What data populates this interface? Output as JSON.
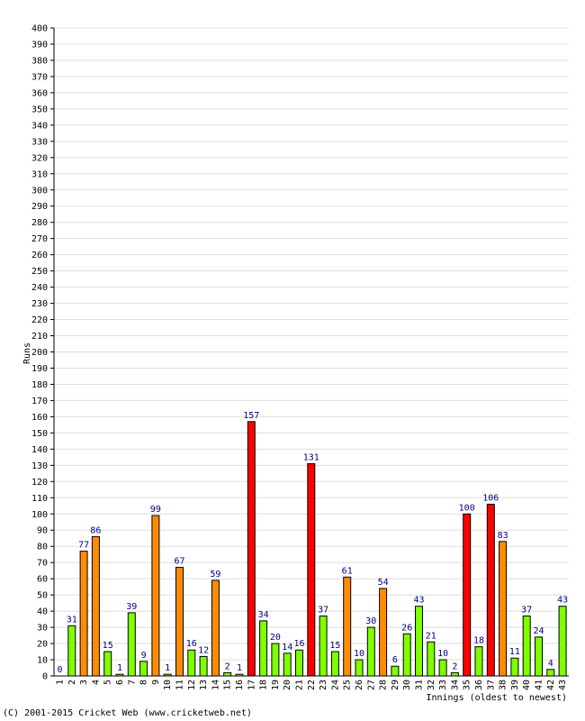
{
  "chart_data": {
    "type": "bar",
    "ylabel": "Runs",
    "xlabel": "Innings (oldest to newest)",
    "ylim": [
      0,
      400
    ],
    "ytick_step": 10,
    "grid": true,
    "categories": [
      "1",
      "2",
      "3",
      "4",
      "5",
      "6",
      "7",
      "8",
      "9",
      "10",
      "11",
      "12",
      "13",
      "14",
      "15",
      "16",
      "17",
      "18",
      "19",
      "20",
      "21",
      "22",
      "23",
      "24",
      "25",
      "26",
      "27",
      "28",
      "29",
      "30",
      "31",
      "32",
      "33",
      "34",
      "35",
      "36",
      "37",
      "38",
      "39",
      "40",
      "41",
      "42",
      "43"
    ],
    "values": [
      0,
      31,
      77,
      86,
      15,
      1,
      39,
      9,
      99,
      1,
      67,
      16,
      12,
      59,
      2,
      1,
      157,
      34,
      20,
      14,
      16,
      131,
      37,
      15,
      61,
      10,
      30,
      54,
      6,
      26,
      43,
      21,
      10,
      2,
      100,
      18,
      106,
      83,
      11,
      37,
      24,
      4,
      43
    ],
    "colors": {
      "under_50": "#7FFF00",
      "50_to_99": "#FF8C00",
      "100_plus": "#FF0000",
      "bar_outline": "#000000",
      "grid": "#DDDDDD",
      "value_label": "#000080"
    }
  },
  "footer": "(C) 2001-2015 Cricket Web (www.cricketweb.net)"
}
